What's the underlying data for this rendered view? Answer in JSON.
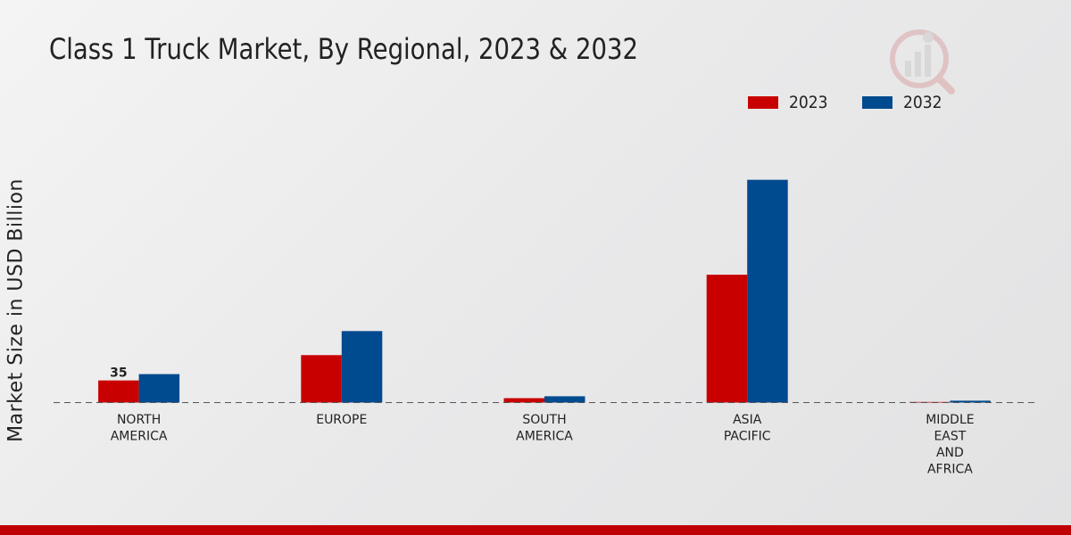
{
  "chart_data": {
    "type": "bar",
    "title": "Class 1 Truck Market, By Regional, 2023 & 2032",
    "ylabel": "Market Size in USD Billion",
    "xlabel": "",
    "categories": [
      [
        "NORTH",
        "AMERICA"
      ],
      [
        "EUROPE"
      ],
      [
        "SOUTH",
        "AMERICA"
      ],
      [
        "ASIA",
        "PACIFIC"
      ],
      [
        "MIDDLE",
        "EAST",
        "AND",
        "AFRICA"
      ]
    ],
    "series": [
      {
        "name": "2023",
        "color": "#c80000",
        "values": [
          35,
          75,
          7,
          202,
          1
        ]
      },
      {
        "name": "2032",
        "color": "#004a8f",
        "values": [
          45,
          113,
          10,
          352,
          3
        ]
      }
    ],
    "data_labels": [
      {
        "series": 0,
        "index": 0,
        "text": "35"
      }
    ],
    "ylim": [
      0,
      460
    ],
    "grid": false,
    "legend_position": "top-right"
  }
}
